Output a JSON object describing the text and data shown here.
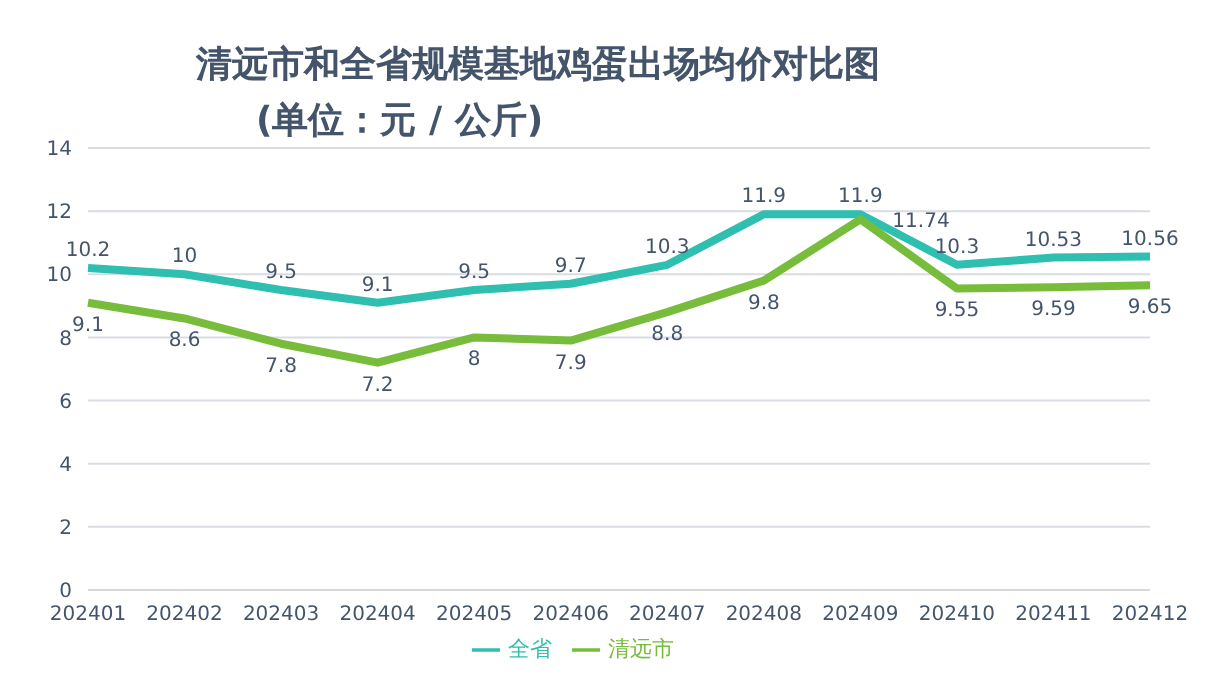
{
  "chart_data": {
    "type": "line",
    "title": "清远市和全省规模基地鸡蛋出场均价对比图",
    "subtitle": "(单位：元 / 公斤)",
    "categories": [
      "202401",
      "202402",
      "202403",
      "202404",
      "202405",
      "202406",
      "202407",
      "202408",
      "202409",
      "202410",
      "202411",
      "202412"
    ],
    "series": [
      {
        "name": "全省",
        "color": "#2fbfb1",
        "values": [
          10.2,
          10,
          9.5,
          9.1,
          9.5,
          9.7,
          10.3,
          11.9,
          11.9,
          10.3,
          10.53,
          10.56
        ]
      },
      {
        "name": "清远市",
        "color": "#78bc3c",
        "values": [
          9.1,
          8.6,
          7.8,
          7.2,
          8,
          7.9,
          8.8,
          9.8,
          11.74,
          9.55,
          9.59,
          9.65
        ]
      }
    ],
    "ylim": [
      0,
      14
    ],
    "yticks": [
      0,
      2,
      4,
      6,
      8,
      10,
      12,
      14
    ],
    "grid": "y",
    "legend": "bottom",
    "marker": "none",
    "line_style": "solid",
    "data_labels": true
  }
}
